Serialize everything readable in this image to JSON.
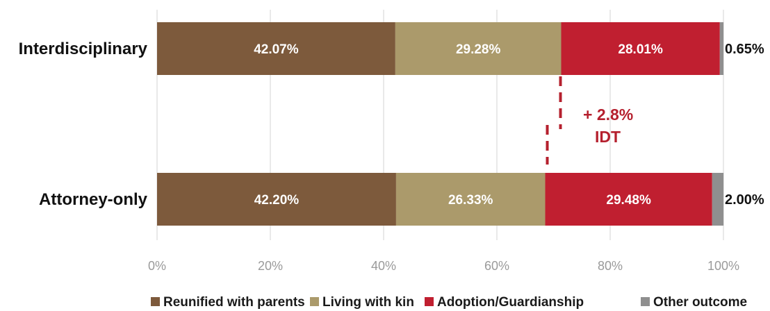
{
  "chart_data": {
    "type": "bar",
    "orientation": "horizontal",
    "stacked": true,
    "categories": [
      "Interdisciplinary",
      "Attorney-only"
    ],
    "series": [
      {
        "name": "Reunified with parents",
        "values": [
          42.07,
          42.2
        ],
        "labels": [
          "42.07%",
          "42.20%"
        ],
        "color": "#7d5a3c"
      },
      {
        "name": "Living with kin",
        "values": [
          29.28,
          26.33
        ],
        "labels": [
          "29.28%",
          "26.33%"
        ],
        "color": "#ab9a6b"
      },
      {
        "name": "Adoption/Guardianship",
        "values": [
          28.01,
          29.48
        ],
        "labels": [
          "28.01%",
          "29.48%"
        ],
        "color": "#c01f30"
      },
      {
        "name": "Other outcome",
        "values": [
          0.65,
          2.0
        ],
        "labels": [
          "0.65%",
          "2.00%"
        ],
        "color": "#8f8f8f"
      }
    ],
    "xlim": [
      0,
      100
    ],
    "xticks": [
      {
        "value": 0,
        "label": "0%"
      },
      {
        "value": 20,
        "label": "20%"
      },
      {
        "value": 40,
        "label": "40%"
      },
      {
        "value": 60,
        "label": "60%"
      },
      {
        "value": 80,
        "label": "80%"
      },
      {
        "value": 100,
        "label": "100%"
      }
    ],
    "grid": true,
    "legend": "bottom",
    "annotation": {
      "line1": "+ 2.8%",
      "line2": "IDT",
      "color": "#b5202e"
    }
  }
}
